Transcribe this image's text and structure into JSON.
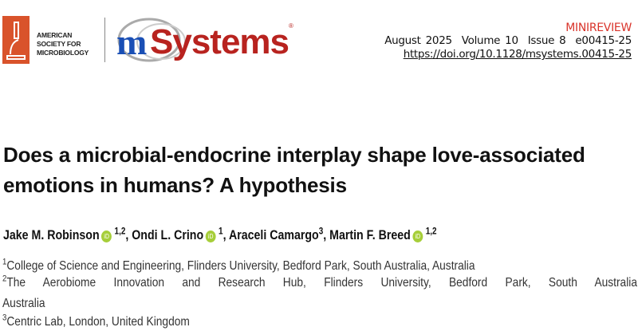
{
  "header": {
    "publisher_logo": {
      "text": [
        "AMERICAN",
        "SOCIETY FOR",
        "MICROBIOLOGY"
      ],
      "icon": "microscope-icon",
      "color": "#d9532b"
    },
    "journal_logo": {
      "prefix": "m",
      "name": "Systems",
      "registered": "®",
      "prefix_color": "#1a4fb5",
      "name_color": "#b8231f"
    },
    "article_type": "MINIREVIEW",
    "issue_line": "August 2025  Volume 10  Issue 8  e00415-25",
    "doi": "https://doi.org/10.1128/msystems.00415-25"
  },
  "title": "Does a microbial-endocrine interplay shape love-associated emotions in humans? A hypothesis",
  "authors": [
    {
      "name": "Jake M. Robinson",
      "orcid": true,
      "affil": "1,2"
    },
    {
      "name": "Ondi L. Crino",
      "orcid": true,
      "affil": "1"
    },
    {
      "name": "Araceli Camargo",
      "orcid": false,
      "affil": "3"
    },
    {
      "name": "Martin F. Breed",
      "orcid": true,
      "affil": "1,2"
    }
  ],
  "orcid_label": "iD",
  "affiliations": [
    {
      "num": "1",
      "text": "College of Science and Engineering, Flinders University, Bedford Park, South Australia, Australia"
    },
    {
      "num": "2",
      "text": "The Aerobiome Innovation and Research Hub, Flinders University, Bedford Park, South Australia,",
      "cont": "Australia"
    },
    {
      "num": "3",
      "text": "Centric Lab, London, United Kingdom"
    }
  ]
}
